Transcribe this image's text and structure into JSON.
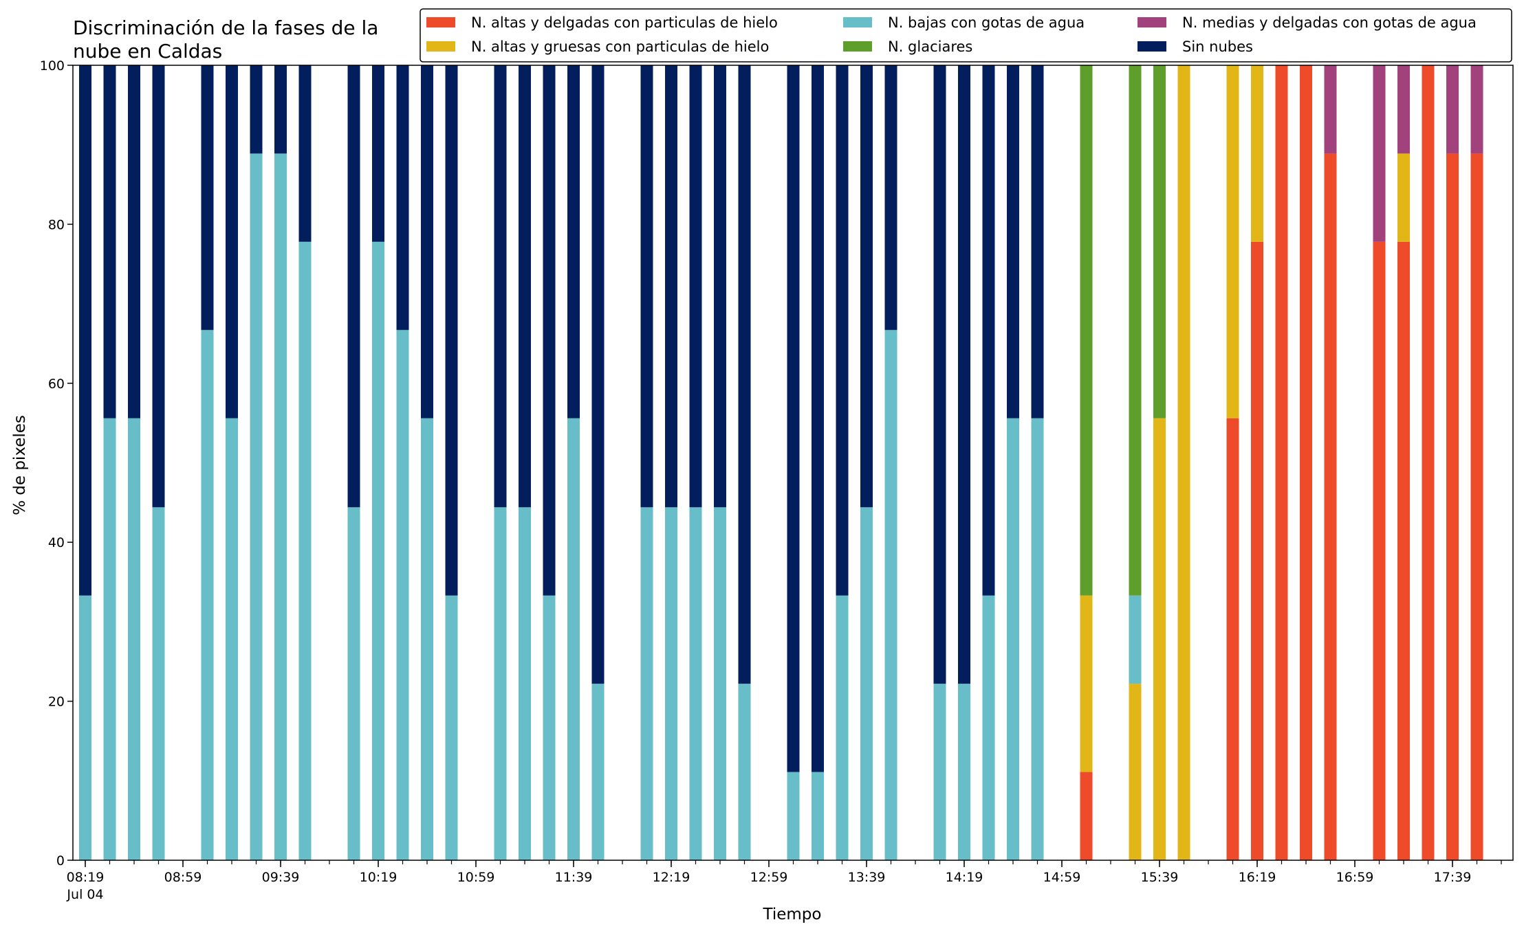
{
  "chart_data": {
    "type": "bar",
    "stacked": true,
    "title": [
      "Discriminación de la fases de la",
      "nube en Caldas"
    ],
    "xlabel": "Tiempo",
    "ylabel": "% de pixeles",
    "ylim": [
      0,
      100
    ],
    "yticks": [
      0,
      20,
      40,
      60,
      80,
      100
    ],
    "xticks": [
      {
        "index": 0,
        "label": "08:19",
        "sublabel": "Jul 04"
      },
      {
        "index": 4,
        "label": "08:59"
      },
      {
        "index": 8,
        "label": "09:39"
      },
      {
        "index": 12,
        "label": "10:19"
      },
      {
        "index": 16,
        "label": "10:59"
      },
      {
        "index": 20,
        "label": "11:39"
      },
      {
        "index": 24,
        "label": "12:19"
      },
      {
        "index": 28,
        "label": "12:59"
      },
      {
        "index": 32,
        "label": "13:39"
      },
      {
        "index": 36,
        "label": "14:19"
      },
      {
        "index": 40,
        "label": "14:59"
      },
      {
        "index": 44,
        "label": "15:39"
      },
      {
        "index": 48,
        "label": "16:19"
      },
      {
        "index": 52,
        "label": "16:59"
      },
      {
        "index": 56,
        "label": "17:39"
      }
    ],
    "slots": 59,
    "bar_indices": [
      0,
      1,
      2,
      3,
      5,
      6,
      7,
      8,
      9,
      11,
      12,
      13,
      14,
      15,
      17,
      18,
      19,
      20,
      21,
      23,
      24,
      25,
      26,
      27,
      29,
      30,
      31,
      32,
      33,
      35,
      36,
      37,
      38,
      39,
      41,
      43,
      44,
      45,
      47,
      48,
      49,
      50,
      51,
      53,
      54,
      55,
      56,
      57
    ],
    "legend_position": "top-right",
    "series": [
      {
        "name": "N. altas y delgadas con particulas de hielo",
        "color": "#ee4b2b",
        "values": [
          0,
          0,
          0,
          0,
          0,
          0,
          0,
          0,
          0,
          0,
          0,
          0,
          0,
          0,
          0,
          0,
          0,
          0,
          0,
          0,
          0,
          0,
          0,
          0,
          0,
          0,
          0,
          0,
          0,
          0,
          0,
          0,
          0,
          0,
          11.1,
          0,
          0,
          0,
          55.6,
          77.8,
          100,
          100,
          88.9,
          77.8,
          77.8,
          100,
          88.9,
          88.9
        ]
      },
      {
        "name": "N. altas y gruesas con particulas de hielo",
        "color": "#e3b617",
        "values": [
          0,
          0,
          0,
          0,
          0,
          0,
          0,
          0,
          0,
          0,
          0,
          0,
          0,
          0,
          0,
          0,
          0,
          0,
          0,
          0,
          0,
          0,
          0,
          0,
          0,
          0,
          0,
          0,
          0,
          0,
          0,
          0,
          0,
          0,
          22.2,
          22.2,
          55.6,
          100,
          44.4,
          22.2,
          0,
          0,
          0,
          0,
          11.1,
          0,
          0,
          0
        ]
      },
      {
        "name": "N. bajas con gotas de agua",
        "color": "#67bec8",
        "values": [
          33.3,
          55.6,
          55.6,
          44.4,
          66.7,
          55.6,
          88.9,
          88.9,
          77.8,
          44.4,
          77.8,
          66.7,
          55.6,
          33.3,
          44.4,
          44.4,
          33.3,
          55.6,
          22.2,
          44.4,
          44.4,
          44.4,
          44.4,
          22.2,
          11.1,
          11.1,
          33.3,
          44.4,
          66.7,
          22.2,
          22.2,
          33.3,
          55.6,
          55.6,
          0,
          11.1,
          0,
          0,
          0,
          0,
          0,
          0,
          0,
          0,
          0,
          0,
          0,
          0
        ]
      },
      {
        "name": "N. glaciares",
        "color": "#5e9f2c",
        "values": [
          0,
          0,
          0,
          0,
          0,
          0,
          0,
          0,
          0,
          0,
          0,
          0,
          0,
          0,
          0,
          0,
          0,
          0,
          0,
          0,
          0,
          0,
          0,
          0,
          0,
          0,
          0,
          0,
          0,
          0,
          0,
          0,
          0,
          0,
          66.7,
          66.7,
          44.4,
          0,
          0,
          0,
          0,
          0,
          0,
          0,
          0,
          0,
          0,
          0
        ]
      },
      {
        "name": "N. medias y delgadas con gotas de agua",
        "color": "#a1427c",
        "values": [
          0,
          0,
          0,
          0,
          0,
          0,
          0,
          0,
          0,
          0,
          0,
          0,
          0,
          0,
          0,
          0,
          0,
          0,
          0,
          0,
          0,
          0,
          0,
          0,
          0,
          0,
          0,
          0,
          0,
          0,
          0,
          0,
          0,
          0,
          0,
          0,
          0,
          0,
          0,
          0,
          0,
          0,
          11.1,
          22.2,
          11.1,
          0,
          11.1,
          11.1
        ]
      },
      {
        "name": "Sin nubes",
        "color": "#031e5c",
        "values": [
          66.7,
          44.4,
          44.4,
          55.6,
          33.3,
          44.4,
          11.1,
          11.1,
          22.2,
          55.6,
          22.2,
          33.3,
          44.4,
          66.7,
          55.6,
          55.6,
          66.7,
          44.4,
          77.8,
          55.6,
          55.6,
          55.6,
          55.6,
          77.8,
          88.9,
          88.9,
          66.7,
          55.6,
          33.3,
          77.8,
          77.8,
          66.7,
          44.4,
          44.4,
          0,
          0,
          0,
          0,
          0,
          0,
          0,
          0,
          0,
          0,
          0,
          0,
          0,
          0
        ]
      }
    ],
    "legend_order": [
      0,
      1,
      2,
      3,
      4,
      5
    ]
  }
}
